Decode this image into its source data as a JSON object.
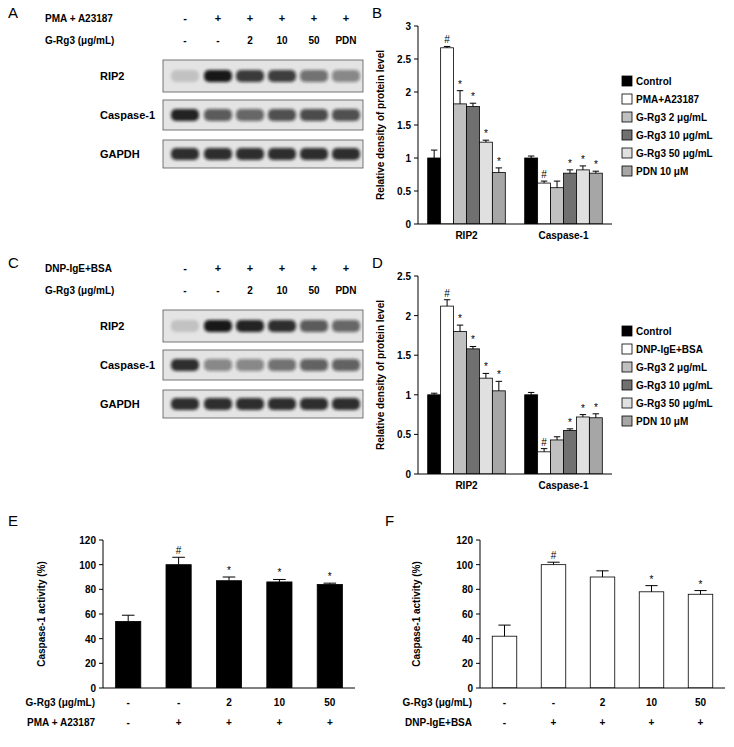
{
  "blots": [
    {
      "panel": "A",
      "treatment": "PMA + A23187",
      "treatment_signs": [
        "-",
        "+",
        "+",
        "+",
        "+",
        "+"
      ],
      "dose_label": "G-Rg3 (μg/mL)",
      "doses": [
        "-",
        "-",
        "2",
        "10",
        "50",
        "PDN"
      ],
      "proteins": [
        {
          "name": "RIP2",
          "intensity": [
            0.15,
            0.95,
            0.8,
            0.78,
            0.55,
            0.45
          ]
        },
        {
          "name": "Caspase-1",
          "intensity": [
            0.9,
            0.65,
            0.6,
            0.7,
            0.72,
            0.7
          ]
        },
        {
          "name": "GAPDH",
          "intensity": [
            0.85,
            0.85,
            0.85,
            0.85,
            0.85,
            0.85
          ]
        }
      ]
    },
    {
      "panel": "C",
      "treatment": "DNP-IgE+BSA",
      "treatment_signs": [
        "-",
        "+",
        "+",
        "+",
        "+",
        "+"
      ],
      "dose_label": "G-Rg3 (μg/mL)",
      "doses": [
        "-",
        "-",
        "2",
        "10",
        "50",
        "PDN"
      ],
      "proteins": [
        {
          "name": "RIP2",
          "intensity": [
            0.15,
            0.95,
            0.9,
            0.85,
            0.65,
            0.6
          ]
        },
        {
          "name": "Caspase-1",
          "intensity": [
            0.85,
            0.45,
            0.45,
            0.55,
            0.62,
            0.62
          ]
        },
        {
          "name": "GAPDH",
          "intensity": [
            0.85,
            0.85,
            0.85,
            0.85,
            0.85,
            0.85
          ]
        }
      ]
    }
  ],
  "chart_data": [
    {
      "panel": "B",
      "type": "bar",
      "y_label": "Relative density of protein level",
      "categories": [
        "RIP2",
        "Caspase-1"
      ],
      "ylim": [
        0,
        3
      ],
      "yticks": [
        0,
        0.5,
        1,
        1.5,
        2,
        2.5,
        3
      ],
      "legend": "right",
      "series": [
        {
          "name": "Control",
          "color": "#000000",
          "values": [
            1.0,
            1.0
          ],
          "errors": [
            0.12,
            0.03
          ],
          "significance": [
            null,
            null
          ]
        },
        {
          "name": "PMA+A23187",
          "color": "#ffffff",
          "values": [
            2.67,
            0.62
          ],
          "errors": [
            0.02,
            0.03
          ],
          "significance": [
            "#",
            "#"
          ]
        },
        {
          "name": "G-Rg3 2 μg/mL",
          "color": "#c0c0c0",
          "values": [
            1.82,
            0.55
          ],
          "errors": [
            0.2,
            0.1
          ],
          "significance": [
            "*",
            null
          ]
        },
        {
          "name": "G-Rg3 10 μg/mL",
          "color": "#707070",
          "values": [
            1.78,
            0.77
          ],
          "errors": [
            0.05,
            0.05
          ],
          "significance": [
            "*",
            "*"
          ]
        },
        {
          "name": "G-Rg3 50 μg/mL",
          "color": "#e0e0e0",
          "values": [
            1.24,
            0.82
          ],
          "errors": [
            0.03,
            0.06
          ],
          "significance": [
            "*",
            "*"
          ]
        },
        {
          "name": "PDN 10 μM",
          "color": "#a6a6a6",
          "values": [
            0.78,
            0.77
          ],
          "errors": [
            0.07,
            0.03
          ],
          "significance": [
            "*",
            "*"
          ]
        }
      ]
    },
    {
      "panel": "D",
      "type": "bar",
      "y_label": "Relative density of protein level",
      "categories": [
        "RIP2",
        "Caspase-1"
      ],
      "ylim": [
        0,
        2.5
      ],
      "yticks": [
        0,
        0.5,
        1,
        1.5,
        2,
        2.5
      ],
      "legend": "right",
      "series": [
        {
          "name": "Control",
          "color": "#000000",
          "values": [
            1.0,
            1.0
          ],
          "errors": [
            0.02,
            0.03
          ],
          "significance": [
            null,
            null
          ]
        },
        {
          "name": "DNP-IgE+BSA",
          "color": "#ffffff",
          "values": [
            2.12,
            0.28
          ],
          "errors": [
            0.08,
            0.04
          ],
          "significance": [
            "#",
            "#"
          ]
        },
        {
          "name": "G-Rg3 2 μg/mL",
          "color": "#c0c0c0",
          "values": [
            1.8,
            0.43
          ],
          "errors": [
            0.08,
            0.04
          ],
          "significance": [
            "*",
            null
          ]
        },
        {
          "name": "G-Rg3 10 μg/mL",
          "color": "#707070",
          "values": [
            1.58,
            0.55
          ],
          "errors": [
            0.03,
            0.02
          ],
          "significance": [
            "*",
            "*"
          ]
        },
        {
          "name": "G-Rg3 50 μg/mL",
          "color": "#e0e0e0",
          "values": [
            1.21,
            0.72
          ],
          "errors": [
            0.06,
            0.03
          ],
          "significance": [
            "*",
            "*"
          ]
        },
        {
          "name": "PDN 10 μM",
          "color": "#a6a6a6",
          "values": [
            1.05,
            0.71
          ],
          "errors": [
            0.12,
            0.05
          ],
          "significance": [
            "*",
            "*"
          ]
        }
      ]
    },
    {
      "panel": "E",
      "type": "bar",
      "y_label": "Caspase-1 activity (%)",
      "categories": [
        null,
        null,
        null,
        null,
        null
      ],
      "ylim": [
        0,
        120
      ],
      "yticks": [
        0,
        20,
        40,
        60,
        80,
        100,
        120
      ],
      "x_rows": [
        {
          "label": "G-Rg3 (μg/mL)",
          "values": [
            "-",
            "-",
            "2",
            "10",
            "50"
          ]
        },
        {
          "label": "PMA + A23187",
          "values": [
            "-",
            "+",
            "+",
            "+",
            "+"
          ]
        }
      ],
      "series": [
        {
          "color": "#000000",
          "values": [
            54,
            100,
            87,
            86,
            84
          ],
          "errors": [
            5,
            6,
            3,
            2,
            1
          ],
          "significance": [
            null,
            "#",
            "*",
            "*",
            "*"
          ]
        }
      ]
    },
    {
      "panel": "F",
      "type": "bar",
      "y_label": "Caspase-1 activity (%)",
      "categories": [
        null,
        null,
        null,
        null,
        null
      ],
      "ylim": [
        0,
        120
      ],
      "yticks": [
        0,
        20,
        40,
        60,
        80,
        100,
        120
      ],
      "x_rows": [
        {
          "label": "G-Rg3 (μg/mL)",
          "values": [
            "-",
            "-",
            "2",
            "10",
            "50"
          ]
        },
        {
          "label": "DNP-IgE+BSA",
          "values": [
            "-",
            "+",
            "+",
            "+",
            "+"
          ]
        }
      ],
      "series": [
        {
          "color": "#ffffff",
          "values": [
            42,
            100,
            90,
            78,
            76
          ],
          "errors": [
            9,
            2,
            5,
            5,
            3
          ],
          "significance": [
            null,
            "#",
            null,
            "*",
            "*"
          ]
        }
      ]
    }
  ]
}
